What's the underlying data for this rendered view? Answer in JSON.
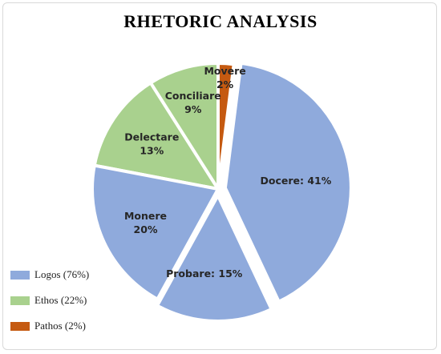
{
  "chart_data": {
    "type": "pie",
    "title": "RHETORIC ANALYSIS",
    "colors": {
      "Logos": "#8faadc",
      "Ethos": "#a9d18e",
      "Pathos": "#c55a11"
    },
    "slices": [
      {
        "name": "Delectare",
        "value": 13,
        "group": "Ethos",
        "label_lines": [
          "Delectare",
          "13%"
        ]
      },
      {
        "name": "Conciliare",
        "value": 9,
        "group": "Ethos",
        "label_lines": [
          "Conciliare",
          "9%"
        ]
      },
      {
        "name": "Movere",
        "value": 2,
        "group": "Pathos",
        "label_lines": [
          "Movere",
          "2%"
        ]
      },
      {
        "name": "Docere",
        "value": 41,
        "group": "Logos",
        "label_lines": [
          "Docere: 41%"
        ]
      },
      {
        "name": "Probare",
        "value": 15,
        "group": "Logos",
        "label_lines": [
          "Probare: 15%"
        ]
      },
      {
        "name": "Monere",
        "value": 20,
        "group": "Logos",
        "label_lines": [
          "Monere",
          "20%"
        ]
      }
    ],
    "legend": [
      {
        "label": "Logos (76%)",
        "color": "#8faadc"
      },
      {
        "label": "Ethos (22%)",
        "color": "#a9d18e"
      },
      {
        "label": "Pathos (2%)",
        "color": "#c55a11"
      }
    ],
    "legend_position": "bottom-left"
  }
}
